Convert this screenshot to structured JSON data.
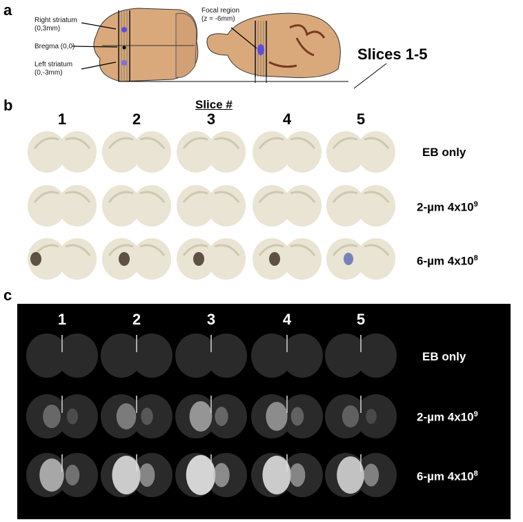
{
  "panel_a": {
    "label": "a",
    "right_striatum": [
      "Right striatum",
      "(0,3mm)"
    ],
    "bregma": "Bregma (0,0)",
    "left_striatum": [
      "Left striatum",
      "(0,-3mm)"
    ],
    "focal": [
      "Focal region",
      "(z = -6mm)"
    ],
    "slices": "Slices 1-5"
  },
  "panel_b": {
    "label": "b",
    "header": "Slice #",
    "slice_numbers": [
      "1",
      "2",
      "3",
      "4",
      "5"
    ],
    "rows": [
      {
        "label": "EB only"
      },
      {
        "label": "2-µm 4x10",
        "exp": "9"
      },
      {
        "label": "6-µm 4x10",
        "exp": "8"
      }
    ]
  },
  "panel_c": {
    "label": "c",
    "slice_numbers": [
      "1",
      "2",
      "3",
      "4",
      "5"
    ],
    "rows": [
      {
        "label": "EB only"
      },
      {
        "label": "2-µm 4x10",
        "exp": "9"
      },
      {
        "label": "6-µm 4x10",
        "exp": "8"
      }
    ]
  },
  "colors": {
    "brain": "#d9a97c",
    "dye": "#5a4fe0",
    "slice_bg": "#e9e4d3",
    "fluor_bg": "#000000"
  }
}
